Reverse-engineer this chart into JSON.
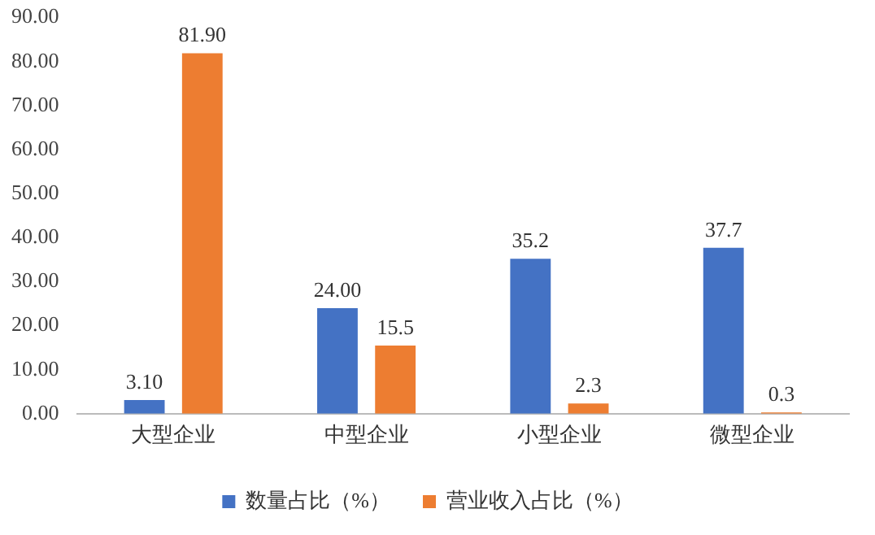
{
  "chart_data": {
    "type": "bar",
    "categories": [
      "大型企业",
      "中型企业",
      "小型企业",
      "微型企业"
    ],
    "series": [
      {
        "name": "数量占比（%）",
        "color": "#4472c4",
        "values": [
          3.1,
          24.0,
          35.2,
          37.7
        ],
        "value_labels": [
          "3.10",
          "24.00",
          "35.2",
          "37.7"
        ]
      },
      {
        "name": "营业收入占比（%）",
        "color": "#ed7d31",
        "values": [
          81.9,
          15.5,
          2.3,
          0.3
        ],
        "value_labels": [
          "81.90",
          "15.5",
          "2.3",
          "0.3"
        ]
      }
    ],
    "ylim": [
      0,
      90
    ],
    "yticks": [
      {
        "value": 0,
        "label": "0.00"
      },
      {
        "value": 10,
        "label": "10.00"
      },
      {
        "value": 20,
        "label": "20.00"
      },
      {
        "value": 30,
        "label": "30.00"
      },
      {
        "value": 40,
        "label": "40.00"
      },
      {
        "value": 50,
        "label": "50.00"
      },
      {
        "value": 60,
        "label": "60.00"
      },
      {
        "value": 70,
        "label": "70.00"
      },
      {
        "value": 80,
        "label": "80.00"
      },
      {
        "value": 90,
        "label": "90.00"
      }
    ],
    "grid": false,
    "legend": "bottom"
  }
}
